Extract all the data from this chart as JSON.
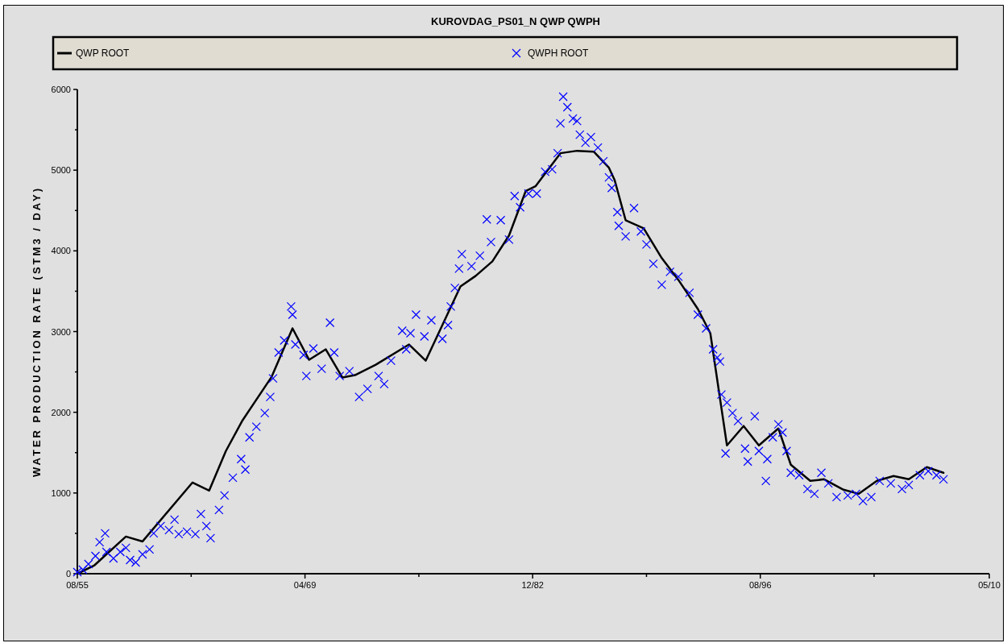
{
  "chart_data": {
    "type": "line",
    "title": "KUROVDAG_PS01_N QWP QWPH",
    "ylabel": "WATER PRODUCTION RATE (STM3 / DAY)",
    "legend": "top",
    "grid": false,
    "xlim": [
      "1955-08",
      "2010-05"
    ],
    "xticks": [
      {
        "value": "1955-08",
        "label": "08/55"
      },
      {
        "value": "1962-06",
        "label": null
      },
      {
        "value": "1969-04",
        "label": "04/69"
      },
      {
        "value": "1976-02",
        "label": null
      },
      {
        "value": "1982-12",
        "label": "12/82"
      },
      {
        "value": "1989-10",
        "label": null
      },
      {
        "value": "1996-08",
        "label": "08/96"
      },
      {
        "value": "2003-06",
        "label": null
      },
      {
        "value": "2010-05",
        "label": "05/10"
      }
    ],
    "ylim": [
      0,
      6000
    ],
    "yticks": [
      0,
      {
        "value": 500,
        "label": null
      },
      1000,
      {
        "value": 1500,
        "label": null
      },
      2000,
      {
        "value": 2500,
        "label": null
      },
      3000,
      {
        "value": 3500,
        "label": null
      },
      4000,
      {
        "value": 4500,
        "label": null
      },
      5000,
      {
        "value": 5500,
        "label": null
      },
      6000
    ],
    "series": [
      {
        "name": "QWP ROOT",
        "color": "#000000",
        "marker": "none",
        "x": [
          "1955-08",
          "1956-08",
          "1958-07",
          "1959-07",
          "1962-07",
          "1963-07",
          "1964-07",
          "1965-07",
          "1967-04",
          "1968-07",
          "1969-07",
          "1970-07",
          "1971-07",
          "1972-04",
          "1973-07",
          "1975-07",
          "1976-07",
          "1978-08",
          "1979-07",
          "1980-07",
          "1981-07",
          "1982-07",
          "1983-02",
          "1984-08",
          "1985-08",
          "1986-08",
          "1987-07",
          "1987-11",
          "1988-07",
          "1989-08",
          "1990-09",
          "1991-09",
          "1992-11",
          "1993-08",
          "1994-08",
          "1995-08",
          "1996-07",
          "1997-09",
          "1998-06",
          "1999-08",
          "2000-06",
          "2001-08",
          "2002-07",
          "2003-08",
          "2004-08",
          "2005-07",
          "2006-08",
          "2007-08"
        ],
        "values": [
          0,
          100,
          460,
          400,
          1130,
          1030,
          1520,
          1900,
          2440,
          3040,
          2650,
          2780,
          2430,
          2460,
          2590,
          2840,
          2640,
          3560,
          3690,
          3870,
          4190,
          4740,
          4800,
          5210,
          5240,
          5230,
          5030,
          4880,
          4380,
          4280,
          3910,
          3640,
          3280,
          2980,
          1590,
          1830,
          1590,
          1800,
          1350,
          1150,
          1170,
          1040,
          990,
          1150,
          1210,
          1170,
          1320,
          1250
        ]
      },
      {
        "name": "QWPH ROOT",
        "type": "scatter",
        "color": "#0000ff",
        "marker": "cross",
        "x": [
          "1955-08",
          "1955-12",
          "1956-04",
          "1956-09",
          "1956-12",
          "1957-04",
          "1957-05",
          "1957-10",
          "1958-03",
          "1958-07",
          "1958-10",
          "1959-02",
          "1959-07",
          "1959-12",
          "1960-03",
          "1960-08",
          "1961-02",
          "1961-06",
          "1961-09",
          "1962-03",
          "1962-09",
          "1963-01",
          "1963-05",
          "1963-08",
          "1964-02",
          "1964-06",
          "1964-12",
          "1965-06",
          "1965-09",
          "1965-12",
          "1966-05",
          "1966-11",
          "1967-03",
          "1967-05",
          "1967-09",
          "1968-01",
          "1968-06",
          "1968-07",
          "1968-09",
          "1969-03",
          "1969-05",
          "1969-10",
          "1970-04",
          "1970-10",
          "1971-01",
          "1971-05",
          "1971-12",
          "1972-07",
          "1973-01",
          "1973-09",
          "1974-01",
          "1974-06",
          "1975-02",
          "1975-05",
          "1975-08",
          "1975-12",
          "1976-06",
          "1976-11",
          "1977-07",
          "1977-11",
          "1978-01",
          "1978-04",
          "1978-07",
          "1978-09",
          "1979-04",
          "1979-10",
          "1980-03",
          "1980-06",
          "1981-01",
          "1981-07",
          "1981-11",
          "1982-03",
          "1982-09",
          "1983-03",
          "1983-09",
          "1984-02",
          "1984-06",
          "1984-08",
          "1984-10",
          "1985-01",
          "1985-05",
          "1985-08",
          "1985-10",
          "1986-02",
          "1986-06",
          "1986-11",
          "1987-03",
          "1987-07",
          "1987-09",
          "1988-01",
          "1988-02",
          "1988-07",
          "1989-01",
          "1989-06",
          "1989-10",
          "1990-03",
          "1990-09",
          "1991-03",
          "1991-09",
          "1992-05",
          "1992-11",
          "1993-05",
          "1993-10",
          "1994-01",
          "1994-03",
          "1994-04",
          "1994-07",
          "1994-08",
          "1994-12",
          "1995-04",
          "1995-09",
          "1995-11",
          "1996-04",
          "1996-07",
          "1996-12",
          "1997-01",
          "1997-05",
          "1997-09",
          "1997-12",
          "1998-03",
          "1998-06",
          "1998-12",
          "1999-06",
          "1999-11",
          "2000-04",
          "2000-09",
          "2001-03",
          "2001-11",
          "2002-05",
          "2002-10",
          "2003-04",
          "2003-10",
          "2004-06",
          "2005-02",
          "2005-07",
          "2006-03",
          "2006-09",
          "2007-03",
          "2007-08"
        ],
        "values": [
          20,
          50,
          120,
          220,
          390,
          500,
          270,
          190,
          270,
          320,
          170,
          140,
          240,
          300,
          500,
          590,
          540,
          670,
          490,
          520,
          490,
          740,
          590,
          440,
          790,
          970,
          1190,
          1420,
          1290,
          1690,
          1820,
          1990,
          2190,
          2420,
          2740,
          2890,
          3310,
          3210,
          2840,
          2710,
          2450,
          2790,
          2540,
          3110,
          2740,
          2450,
          2510,
          2190,
          2290,
          2450,
          2350,
          2640,
          3010,
          2780,
          2980,
          3210,
          2940,
          3140,
          2910,
          3080,
          3310,
          3540,
          3780,
          3960,
          3810,
          3940,
          4390,
          4110,
          4380,
          4140,
          4680,
          4540,
          4710,
          4710,
          4980,
          5010,
          5210,
          5580,
          5910,
          5780,
          5640,
          5610,
          5440,
          5340,
          5410,
          5280,
          5110,
          4910,
          4780,
          4480,
          4310,
          4180,
          4530,
          4240,
          4080,
          3840,
          3580,
          3740,
          3680,
          3480,
          3210,
          3040,
          2780,
          2680,
          2630,
          2220,
          1490,
          2120,
          1990,
          1890,
          1550,
          1390,
          1950,
          1520,
          1150,
          1420,
          1690,
          1850,
          1750,
          1520,
          1250,
          1220,
          1050,
          990,
          1250,
          1120,
          950,
          970,
          990,
          900,
          950,
          1150,
          1120,
          1050,
          1100,
          1220,
          1270,
          1220,
          1170
        ]
      }
    ]
  }
}
